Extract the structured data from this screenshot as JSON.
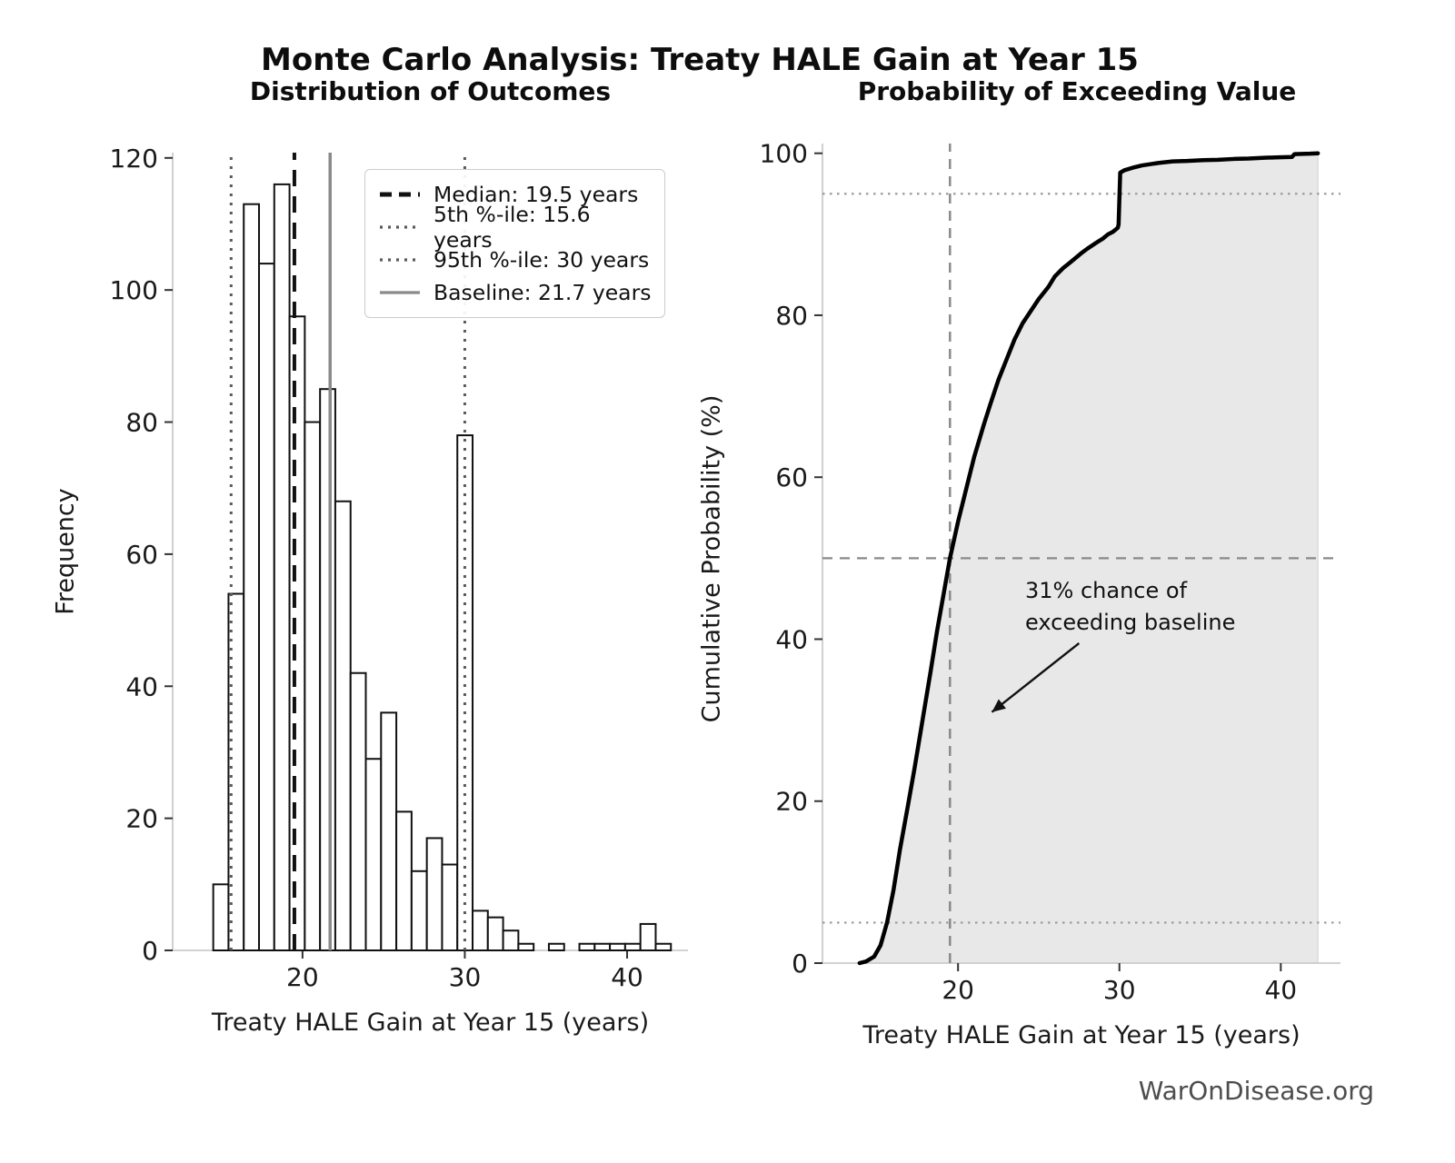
{
  "suptitle": "Monte Carlo Analysis: Treaty HALE Gain at Year 15",
  "footer": "WarOnDisease.org",
  "colors": {
    "background": "#ffffff",
    "spine": "#cbcbcb",
    "tick": "#333333",
    "tick_label": "#1a1a1a",
    "bar_fill": "#ffffff",
    "bar_edge": "#111111",
    "cdf_line": "#000000",
    "cdf_fill": "#e8e8e8",
    "ref_line": "#8a8a8a",
    "dotted_ref": "#9a9a9a",
    "footer_text": "#4d4d4d"
  },
  "chart_data": [
    {
      "type": "bar",
      "subtype": "histogram",
      "title": "Distribution of Outcomes",
      "xlabel": "Treaty HALE Gain at Year 15 (years)",
      "ylabel": "Frequency",
      "bin_start": 14.5,
      "bin_width": 0.94,
      "counts": [
        10,
        54,
        113,
        104,
        116,
        96,
        80,
        85,
        68,
        42,
        29,
        36,
        21,
        12,
        17,
        13,
        78,
        6,
        5,
        3,
        1,
        0,
        1,
        0,
        1,
        1,
        1,
        1,
        4,
        1
      ],
      "xlim": [
        12.0,
        43.75
      ],
      "ylim": [
        0,
        120.8
      ],
      "xticks": [
        20,
        30,
        40
      ],
      "yticks": [
        0,
        20,
        40,
        60,
        80,
        100,
        120
      ],
      "grid": false,
      "legend_position": "upper right",
      "vlines": [
        {
          "x": 19.5,
          "style": "dashed",
          "color": "#111111",
          "width": 4,
          "label": "Median: 19.5 years"
        },
        {
          "x": 15.6,
          "style": "dotted",
          "color": "#5a5a5a",
          "width": 3,
          "label": "5th %-ile: 15.6 years"
        },
        {
          "x": 30,
          "style": "dotted",
          "color": "#5a5a5a",
          "width": 3,
          "label": "95th %-ile: 30 years"
        },
        {
          "x": 21.7,
          "style": "solid",
          "color": "#8a8a8a",
          "width": 3.5,
          "label": "Baseline: 21.7 years"
        }
      ]
    },
    {
      "type": "line",
      "subtype": "empirical-cdf",
      "title": "Probability of Exceeding Value",
      "xlabel": "Treaty HALE Gain at Year 15 (years)",
      "ylabel": "Cumulative Probability (%)",
      "xlim": [
        11.6,
        43.7
      ],
      "ylim": [
        0,
        101.2
      ],
      "xticks": [
        20,
        30,
        40
      ],
      "yticks": [
        0,
        20,
        40,
        60,
        80,
        100
      ],
      "grid": false,
      "curve": [
        [
          13.9,
          0
        ],
        [
          14.3,
          0.2
        ],
        [
          14.8,
          0.8
        ],
        [
          15.2,
          2.2
        ],
        [
          15.6,
          5
        ],
        [
          16.0,
          9
        ],
        [
          16.4,
          14
        ],
        [
          16.9,
          19.5
        ],
        [
          17.3,
          24
        ],
        [
          17.8,
          30
        ],
        [
          18.3,
          36
        ],
        [
          18.7,
          41
        ],
        [
          19.1,
          45.5
        ],
        [
          19.5,
          50
        ],
        [
          20.0,
          54.5
        ],
        [
          20.5,
          58.5
        ],
        [
          21.0,
          62.5
        ],
        [
          21.6,
          66.5
        ],
        [
          22.0,
          69
        ],
        [
          22.5,
          72
        ],
        [
          23.0,
          74.5
        ],
        [
          23.5,
          77
        ],
        [
          24.0,
          79
        ],
        [
          24.5,
          80.5
        ],
        [
          25.0,
          82
        ],
        [
          25.6,
          83.5
        ],
        [
          26.0,
          84.8
        ],
        [
          26.5,
          85.8
        ],
        [
          27.0,
          86.6
        ],
        [
          27.6,
          87.6
        ],
        [
          28.0,
          88.2
        ],
        [
          28.6,
          89
        ],
        [
          29.0,
          89.5
        ],
        [
          29.3,
          90
        ],
        [
          29.6,
          90.3
        ],
        [
          29.9,
          90.8
        ],
        [
          29.95,
          91.2
        ],
        [
          30.05,
          97.6
        ],
        [
          30.3,
          97.9
        ],
        [
          30.8,
          98.2
        ],
        [
          31.4,
          98.5
        ],
        [
          32.4,
          98.8
        ],
        [
          33.3,
          99.0
        ],
        [
          34.2,
          99.05
        ],
        [
          35.2,
          99.15
        ],
        [
          36.1,
          99.2
        ],
        [
          37.1,
          99.3
        ],
        [
          38.0,
          99.35
        ],
        [
          39.0,
          99.45
        ],
        [
          39.9,
          99.5
        ],
        [
          40.7,
          99.55
        ],
        [
          40.85,
          99.9
        ],
        [
          41.8,
          99.95
        ],
        [
          42.3,
          100
        ]
      ],
      "hlines": [
        {
          "y": 50,
          "style": "dashed",
          "color": "#8a8a8a",
          "width": 2.2
        },
        {
          "y": 95,
          "style": "dotted",
          "color": "#9a9a9a",
          "width": 2.2
        },
        {
          "y": 5,
          "style": "dotted",
          "color": "#9a9a9a",
          "width": 2.2
        }
      ],
      "vlines": [
        {
          "x": 19.5,
          "style": "dashed",
          "color": "#8a8a8a",
          "width": 2.5
        }
      ],
      "annotation": {
        "lines": [
          "31% chance of",
          "exceeding baseline"
        ],
        "arrow_from": [
          27.5,
          39.5
        ],
        "arrow_to": [
          22.1,
          31.0
        ]
      }
    }
  ]
}
